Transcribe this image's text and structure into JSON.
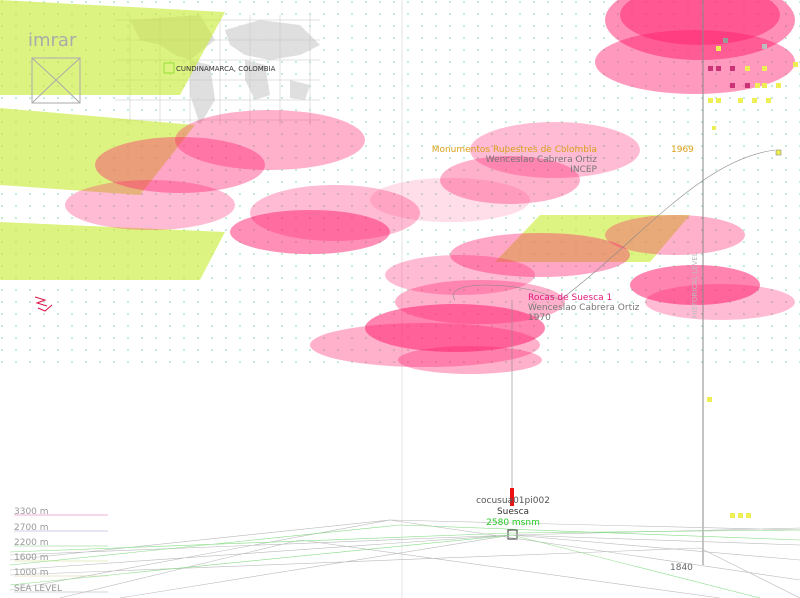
{
  "logo": "imrar",
  "location": "CUNDINAMARCA, COLOMBIA",
  "record_a": {
    "title": "Monumentos Rupestres de Colombia",
    "author": "Wenceslao Cabrera Ortiz",
    "publisher": "INCEP",
    "year": "1969"
  },
  "record_b": {
    "title": "Rocas de Suesca 1",
    "author": "Wenceslao Cabrera Ortiz",
    "year": "1970"
  },
  "axis_label": "HISTORICAL LEVEL",
  "site": {
    "code": "cocusua01pi002",
    "name": "Suesca",
    "altitude": "2580 msnm"
  },
  "altitudes": [
    "3300 m",
    "2700 m",
    "2200 m",
    "1600 m",
    "1000 m",
    "SEA LEVEL"
  ],
  "year_marker": "1840"
}
